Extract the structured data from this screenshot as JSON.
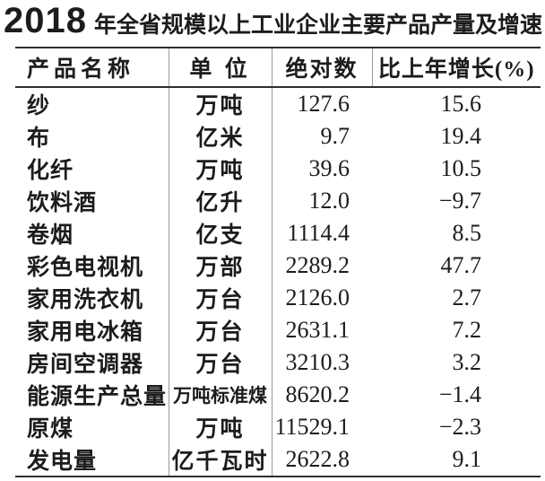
{
  "title": {
    "year": "2018",
    "text": "年全省规模以上工业企业主要产品产量及增速"
  },
  "table": {
    "headers": [
      "产品名称",
      "单 位",
      "绝对数",
      "比上年增长(%)"
    ],
    "rows": [
      {
        "name": "纱",
        "unit": "万吨",
        "value": "127.6",
        "growth": "15.6"
      },
      {
        "name": "布",
        "unit": "亿米",
        "value": "9.7",
        "growth": "19.4"
      },
      {
        "name": "化纤",
        "unit": "万吨",
        "value": "39.6",
        "growth": "10.5"
      },
      {
        "name": "饮料酒",
        "unit": "亿升",
        "value": "12.0",
        "growth": "−9.7"
      },
      {
        "name": "卷烟",
        "unit": "亿支",
        "value": "1114.4",
        "growth": "8.5"
      },
      {
        "name": "彩色电视机",
        "unit": "万部",
        "value": "2289.2",
        "growth": "47.7"
      },
      {
        "name": "家用洗衣机",
        "unit": "万台",
        "value": "2126.0",
        "growth": "2.7"
      },
      {
        "name": "家用电冰箱",
        "unit": "万台",
        "value": "2631.1",
        "growth": "7.2"
      },
      {
        "name": "房间空调器",
        "unit": "万台",
        "value": "3210.3",
        "growth": "3.2"
      },
      {
        "name": "能源生产总量",
        "unit": "万吨标准煤",
        "value": "8620.2",
        "growth": "−1.4"
      },
      {
        "name": "原煤",
        "unit": "万吨",
        "value": "11529.1",
        "growth": "−2.3"
      },
      {
        "name": "发电量",
        "unit": "亿千瓦时",
        "value": "2622.8",
        "growth": "9.1"
      }
    ]
  },
  "colors": {
    "text": "#1c1c1c",
    "horizontal_rule": "#2e2e2e",
    "column_divider": "#9a9a9a",
    "background": "#ffffff"
  },
  "chart_data": {
    "type": "table",
    "title": "2018 年全省规模以上工业企业主要产品产量及增速",
    "columns": [
      "产品名称",
      "单 位",
      "绝对数",
      "比上年增长(%)"
    ],
    "rows": [
      [
        "纱",
        "万吨",
        127.6,
        15.6
      ],
      [
        "布",
        "亿米",
        9.7,
        19.4
      ],
      [
        "化纤",
        "万吨",
        39.6,
        10.5
      ],
      [
        "饮料酒",
        "亿升",
        12.0,
        -9.7
      ],
      [
        "卷烟",
        "亿支",
        1114.4,
        8.5
      ],
      [
        "彩色电视机",
        "万部",
        2289.2,
        47.7
      ],
      [
        "家用洗衣机",
        "万台",
        2126.0,
        2.7
      ],
      [
        "家用电冰箱",
        "万台",
        2631.1,
        7.2
      ],
      [
        "房间空调器",
        "万台",
        3210.3,
        3.2
      ],
      [
        "能源生产总量",
        "万吨标准煤",
        8620.2,
        -1.4
      ],
      [
        "原煤",
        "万吨",
        11529.1,
        -2.3
      ],
      [
        "发电量",
        "亿千瓦时",
        2622.8,
        9.1
      ]
    ]
  }
}
